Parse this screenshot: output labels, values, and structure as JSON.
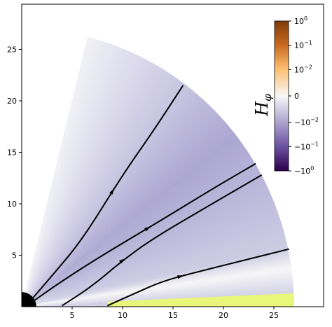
{
  "chart_data": {
    "type": "heatmap",
    "title": "",
    "xlabel": "",
    "ylabel": "",
    "xlim": [
      0,
      29
    ],
    "ylim": [
      0,
      29.5
    ],
    "x_ticks": [
      "5",
      "10",
      "15",
      "20",
      "25"
    ],
    "y_ticks": [
      "5",
      "10",
      "15",
      "20",
      "25"
    ],
    "x_tick_values": [
      5,
      10,
      15,
      20,
      25
    ],
    "y_tick_values": [
      5,
      10,
      15,
      20,
      25
    ],
    "field": {
      "name": "H_phi",
      "outer_radius": 27,
      "opening_angle_deg": 76,
      "disk_inner_radius": 8.5,
      "disk_color": "#e8f77a",
      "neutral_sheet_angle_deg": 8
    },
    "central_object": {
      "radius": 1,
      "color": "#000000"
    },
    "field_lines": [
      {
        "name": "line-1",
        "points": [
          [
            0.8,
            0.5
          ],
          [
            3,
            3
          ],
          [
            6,
            6.5
          ],
          [
            10,
            12.8
          ],
          [
            13,
            17
          ],
          [
            16,
            21.5
          ]
        ],
        "arrow_at": 0.55
      },
      {
        "name": "line-2",
        "points": [
          [
            0.8,
            0.3
          ],
          [
            4,
            2.5
          ],
          [
            8,
            5
          ],
          [
            14,
            8.5
          ],
          [
            19,
            11.5
          ],
          [
            23.2,
            13.9
          ]
        ],
        "arrow_at": 0.55
      },
      {
        "name": "line-3",
        "points": [
          [
            4,
            0.1
          ],
          [
            7,
            2
          ],
          [
            10,
            4.5
          ],
          [
            13,
            6.6
          ],
          [
            18,
            9.5
          ],
          [
            23.8,
            12.8
          ]
        ],
        "arrow_at": 0.4
      },
      {
        "name": "line-4",
        "points": [
          [
            8.5,
            0.1
          ],
          [
            11,
            1.2
          ],
          [
            14,
            2.5
          ],
          [
            17.5,
            3.4
          ],
          [
            22,
            4.5
          ],
          [
            26.5,
            5.6
          ]
        ],
        "arrow_at": 0.5
      }
    ],
    "colorbar": {
      "label": "H_φ",
      "ticks": [
        "10^0",
        "10^-1",
        "10^-2",
        "0",
        "-10^-2",
        "-10^-1",
        "-10^0"
      ],
      "stops": [
        "#7f3b08",
        "#d8772a",
        "#fdbf6f",
        "#f7f7f7",
        "#b2abd2",
        "#6a50a0",
        "#2d004b"
      ]
    }
  }
}
